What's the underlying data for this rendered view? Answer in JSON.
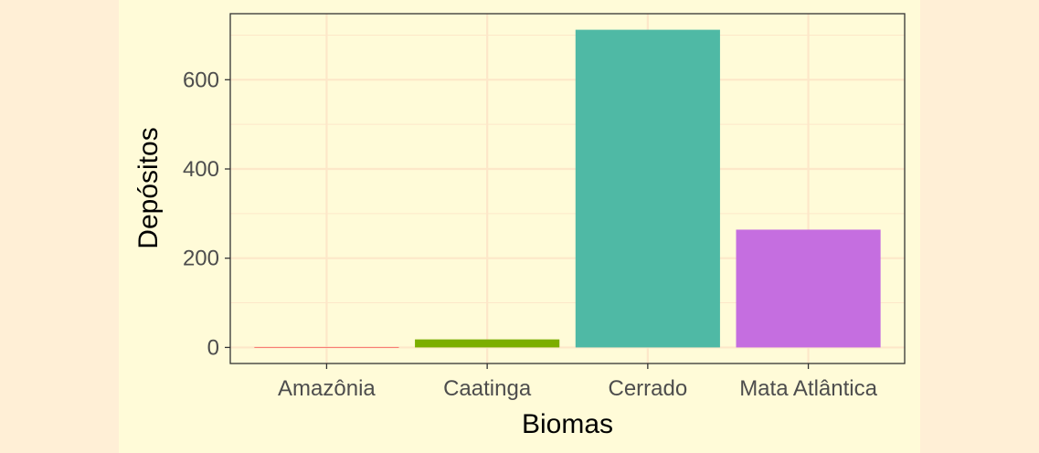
{
  "page_background": "#ffefd6",
  "figure_background": "#fffbd8",
  "chart_data": {
    "type": "bar",
    "categories": [
      "Amazônia",
      "Caatinga",
      "Cerrado",
      "Mata Atlântica"
    ],
    "values": [
      1,
      18,
      712,
      264
    ],
    "colors": [
      "#f8766d",
      "#7cae00",
      "#4fb9a5",
      "#c56ee0"
    ],
    "xlabel": "Biomas",
    "ylabel": "Depósitos",
    "yticks": [
      0,
      200,
      400,
      600
    ],
    "ylim": [
      -36,
      748
    ],
    "grid": true,
    "legend": "none",
    "grid_color": "#fde7c9",
    "panel_border_color": "#333333"
  }
}
